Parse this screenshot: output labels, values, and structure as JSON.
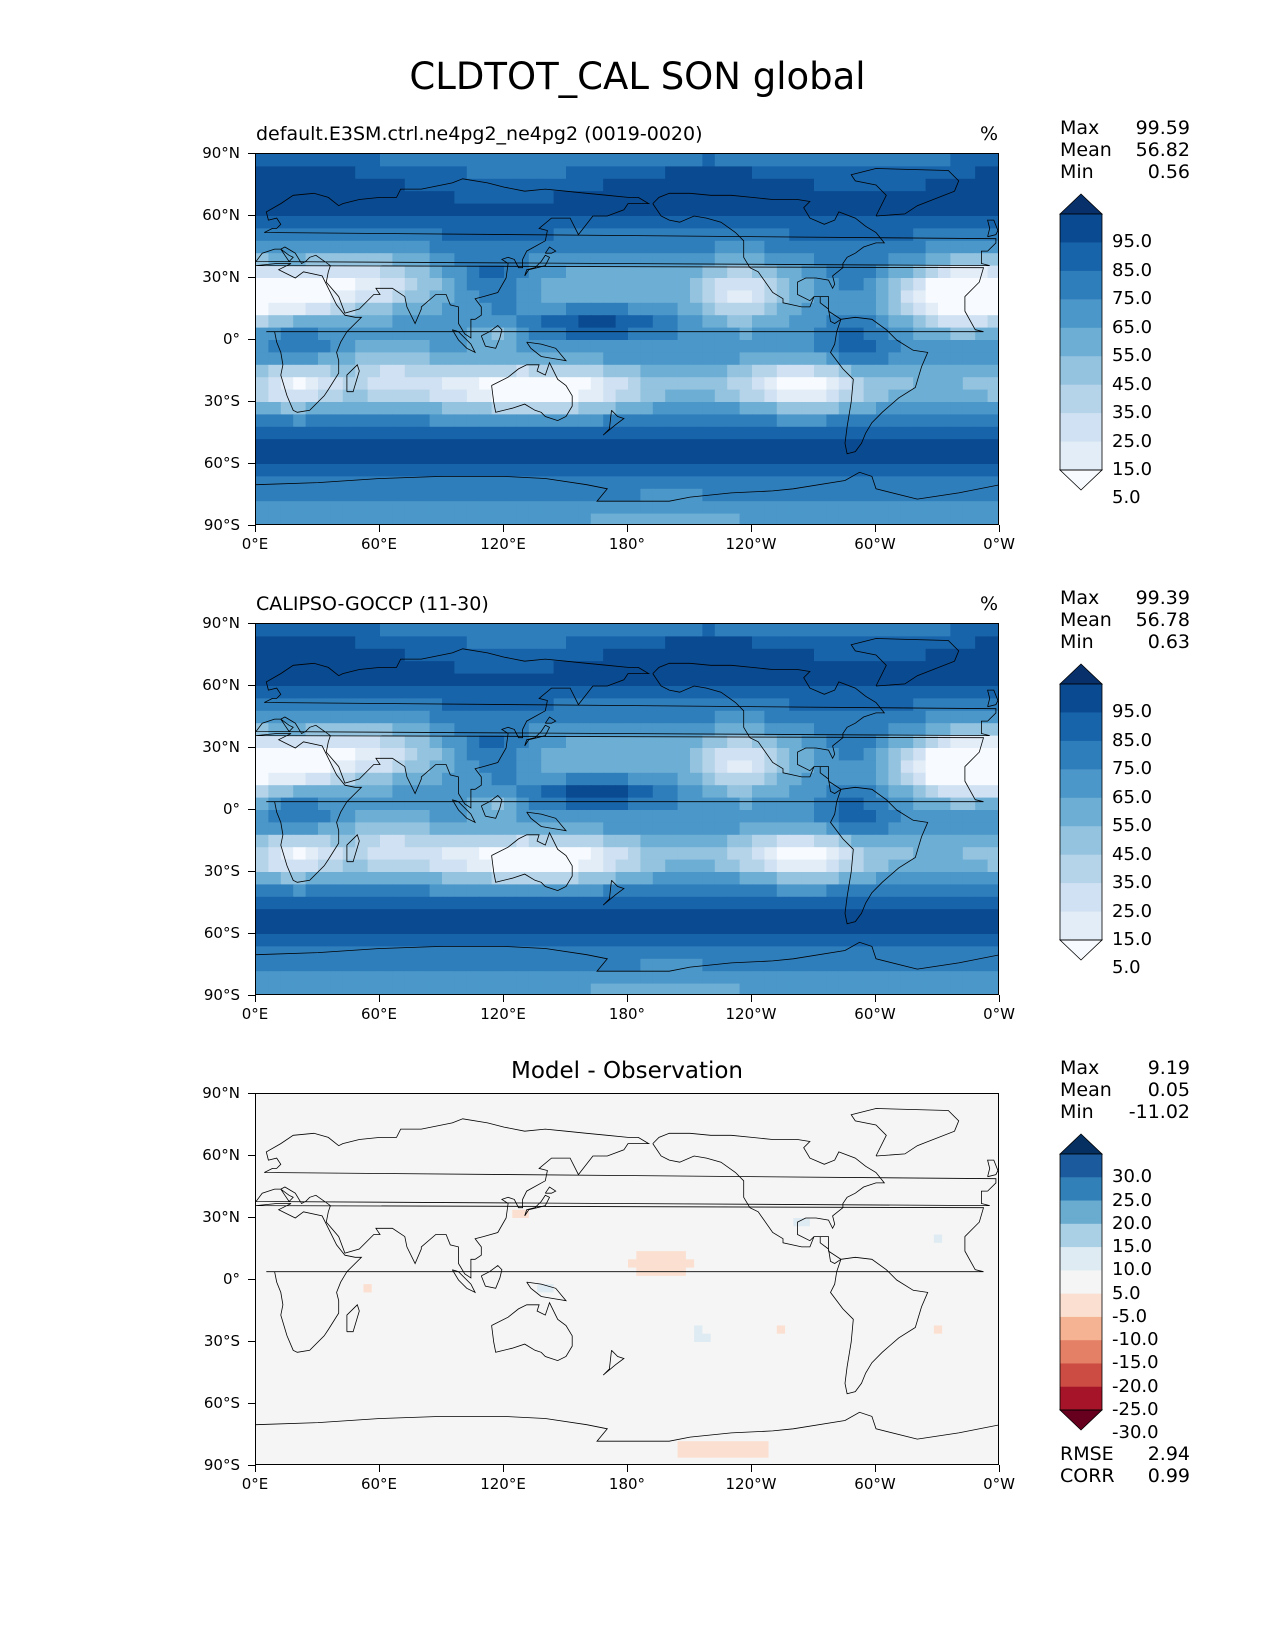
{
  "title": "CLDTOT_CAL SON global",
  "lat_labels": [
    "90°N",
    "60°N",
    "30°N",
    "0°",
    "30°S",
    "60°S",
    "90°S"
  ],
  "lon_labels": [
    "0°E",
    "60°E",
    "120°E",
    "180°",
    "120°W",
    "60°W",
    "0°W"
  ],
  "panels": [
    {
      "id": "model",
      "title": "default.E3SM.ctrl.ne4pg2_ne4pg2 (0019-0020)",
      "unit": "%",
      "stats": {
        "max_label": "Max",
        "max": "99.59",
        "mean_label": "Mean",
        "mean": "56.82",
        "min_label": "Min",
        "min": "0.56"
      },
      "colorbar_labels": [
        "95.0",
        "85.0",
        "75.0",
        "65.0",
        "55.0",
        "45.0",
        "35.0",
        "25.0",
        "15.0",
        "5.0"
      ]
    },
    {
      "id": "obs",
      "title": "CALIPSO-GOCCP (11-30)",
      "unit": "%",
      "stats": {
        "max_label": "Max",
        "max": "99.39",
        "mean_label": "Mean",
        "mean": "56.78",
        "min_label": "Min",
        "min": "0.63"
      },
      "colorbar_labels": [
        "95.0",
        "85.0",
        "75.0",
        "65.0",
        "55.0",
        "45.0",
        "35.0",
        "25.0",
        "15.0",
        "5.0"
      ]
    },
    {
      "id": "diff",
      "title": "Model - Observation",
      "stats": {
        "max_label": "Max",
        "max": "9.19",
        "mean_label": "Mean",
        "mean": "0.05",
        "min_label": "Min",
        "min": "-11.02"
      },
      "colorbar_labels": [
        "30.0",
        "25.0",
        "20.0",
        "15.0",
        "10.0",
        "5.0",
        "-5.0",
        "-10.0",
        "-15.0",
        "-20.0",
        "-25.0",
        "-30.0"
      ],
      "metrics": {
        "rmse_label": "RMSE",
        "rmse": "2.94",
        "corr_label": "CORR",
        "corr": "0.99"
      }
    }
  ],
  "colors": {
    "blues": [
      "#f7fbff",
      "#e2edf8",
      "#cfe1f2",
      "#b5d4e9",
      "#93c3df",
      "#6daed5",
      "#4b97c9",
      "#2f7ebc",
      "#1864aa",
      "#0a4a90",
      "#08306b"
    ],
    "diverging": [
      "#67001f",
      "#a51429",
      "#cc4c44",
      "#e48066",
      "#f5b394",
      "#fbe0d1",
      "#f5f5f5",
      "#deebf2",
      "#a9d0e5",
      "#6aacd0",
      "#3280b8",
      "#1b5a9c",
      "#053061"
    ],
    "coast": "#000000"
  }
}
